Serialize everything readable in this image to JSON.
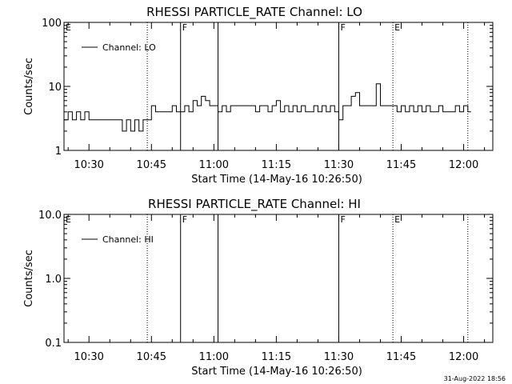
{
  "chart_data": [
    {
      "type": "line",
      "title": "RHESSI PARTICLE_RATE Channel: LO",
      "xlabel": "Start Time (14-May-16 10:26:50)",
      "ylabel": "Counts/sec",
      "yscale": "log",
      "ylim": [
        1,
        100
      ],
      "xlim": [
        "10:24",
        "12:07"
      ],
      "xticks": [
        "10:30",
        "10:45",
        "11:00",
        "11:15",
        "11:30",
        "11:45",
        "12:00"
      ],
      "yticks": [
        "1",
        "10",
        "100"
      ],
      "legend": {
        "label": "Channel: LO",
        "position": "top-left"
      },
      "markers": [
        {
          "time": "10:24",
          "label": "E",
          "style": "none"
        },
        {
          "time": "10:44",
          "label": "",
          "style": "dotted"
        },
        {
          "time": "10:52",
          "label": "F",
          "style": "solid"
        },
        {
          "time": "11:01",
          "label": "",
          "style": "solid"
        },
        {
          "time": "11:30",
          "label": "F",
          "style": "solid"
        },
        {
          "time": "11:43",
          "label": "E",
          "style": "dotted"
        },
        {
          "time": "12:01",
          "label": "",
          "style": "dotted"
        }
      ],
      "series": [
        {
          "x": [
            "10:24",
            "10:25",
            "10:26",
            "10:27",
            "10:28",
            "10:29",
            "10:30",
            "10:31",
            "10:32",
            "10:33",
            "10:34",
            "10:35",
            "10:36",
            "10:37",
            "10:38",
            "10:39",
            "10:40",
            "10:41",
            "10:42",
            "10:43",
            "10:44",
            "10:45",
            "10:46",
            "10:47",
            "10:48",
            "10:49",
            "10:50",
            "10:51",
            "10:52",
            "10:53",
            "10:54",
            "10:55",
            "10:56",
            "10:57",
            "10:58",
            "10:59",
            "11:00",
            "11:01",
            "11:02",
            "11:03",
            "11:04",
            "11:05",
            "11:06",
            "11:07",
            "11:08",
            "11:09",
            "11:10",
            "11:11",
            "11:12",
            "11:13",
            "11:14",
            "11:15",
            "11:16",
            "11:17",
            "11:18",
            "11:19",
            "11:20",
            "11:21",
            "11:22",
            "11:23",
            "11:24",
            "11:25",
            "11:26",
            "11:27",
            "11:28",
            "11:29",
            "11:30",
            "11:31",
            "11:32",
            "11:33",
            "11:34",
            "11:35",
            "11:36",
            "11:37",
            "11:38",
            "11:39",
            "11:40",
            "11:41",
            "11:42",
            "11:43",
            "11:44",
            "11:45",
            "11:46",
            "11:47",
            "11:48",
            "11:49",
            "11:50",
            "11:51",
            "11:52",
            "11:53",
            "11:54",
            "11:55",
            "11:56",
            "11:57",
            "11:58",
            "11:59",
            "12:00",
            "12:01"
          ],
          "y": [
            3,
            4,
            3,
            4,
            3,
            4,
            3,
            3,
            3,
            3,
            3,
            3,
            3,
            3,
            2,
            3,
            2,
            3,
            2,
            3,
            3,
            5,
            4,
            4,
            4,
            4,
            5,
            4,
            4,
            5,
            4,
            6,
            5,
            7,
            6,
            5,
            5,
            4,
            5,
            4,
            5,
            5,
            5,
            5,
            5,
            5,
            4,
            5,
            5,
            4,
            5,
            6,
            4,
            5,
            4,
            5,
            4,
            5,
            4,
            4,
            5,
            4,
            5,
            4,
            5,
            4,
            3,
            5,
            5,
            7,
            8,
            5,
            5,
            5,
            5,
            11,
            5,
            5,
            5,
            5,
            4,
            5,
            4,
            5,
            4,
            5,
            4,
            5,
            4,
            4,
            5,
            4,
            4,
            4,
            5,
            4,
            5,
            4
          ]
        }
      ]
    },
    {
      "type": "line",
      "title": "RHESSI PARTICLE_RATE Channel: HI",
      "xlabel": "Start Time (14-May-16 10:26:50)",
      "ylabel": "Counts/sec",
      "yscale": "log",
      "ylim": [
        0.1,
        10
      ],
      "xlim": [
        "10:24",
        "12:07"
      ],
      "xticks": [
        "10:30",
        "10:45",
        "11:00",
        "11:15",
        "11:30",
        "11:45",
        "12:00"
      ],
      "yticks": [
        "0.1",
        "1.0",
        "10.0"
      ],
      "legend": {
        "label": "Channel: HI",
        "position": "top-left"
      },
      "markers": [
        {
          "time": "10:24",
          "label": "E",
          "style": "none"
        },
        {
          "time": "10:44",
          "label": "",
          "style": "dotted"
        },
        {
          "time": "10:52",
          "label": "F",
          "style": "solid"
        },
        {
          "time": "11:01",
          "label": "",
          "style": "solid"
        },
        {
          "time": "11:30",
          "label": "F",
          "style": "solid"
        },
        {
          "time": "11:43",
          "label": "E",
          "style": "dotted"
        },
        {
          "time": "12:01",
          "label": "",
          "style": "dotted"
        }
      ],
      "series": []
    }
  ],
  "footer": {
    "timestamp": "31-Aug-2022 18:56"
  }
}
